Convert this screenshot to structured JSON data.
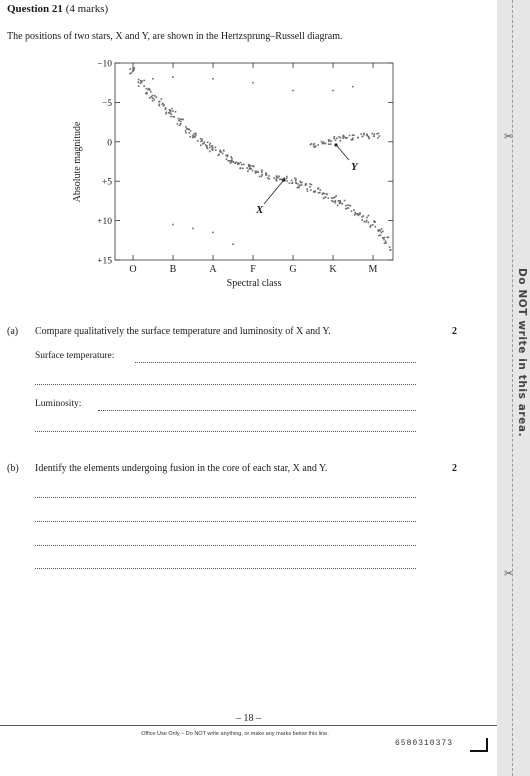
{
  "question": {
    "title": "Question 21",
    "marks_note": "(4 marks)",
    "intro": "The positions of two stars, X and Y, are shown in the Hertzsprung–Russell diagram."
  },
  "chart_data": {
    "type": "scatter",
    "xlabel": "Spectral class",
    "ylabel": "Absolute magnitude",
    "x_categories": [
      "O",
      "B",
      "A",
      "F",
      "G",
      "K",
      "M"
    ],
    "y_ticks": [
      "−10",
      "−5",
      "0",
      "+5",
      "+10",
      "+15"
    ],
    "ylim": [
      -10,
      15
    ],
    "y_inverted": true,
    "annotations": [
      {
        "label": "X",
        "x": 4.0,
        "y": 4.6
      },
      {
        "label": "Y",
        "x": 5.1,
        "y": 0.3
      }
    ],
    "series": [
      {
        "region": "main-sequence",
        "points": [
          [
            0.0,
            -9
          ],
          [
            0.2,
            -7.5
          ],
          [
            0.4,
            -6.5
          ],
          [
            0.5,
            -5.5
          ],
          [
            0.7,
            -5
          ],
          [
            0.9,
            -4
          ],
          [
            1.0,
            -3.5
          ],
          [
            1.2,
            -2.5
          ],
          [
            1.4,
            -1.5
          ],
          [
            1.5,
            -1
          ],
          [
            1.7,
            0
          ],
          [
            1.9,
            0.5
          ],
          [
            2.0,
            1
          ],
          [
            2.2,
            1.5
          ],
          [
            2.4,
            2
          ],
          [
            2.5,
            2.5
          ],
          [
            2.7,
            3
          ],
          [
            2.9,
            3.3
          ],
          [
            3.0,
            3.5
          ],
          [
            3.2,
            4
          ],
          [
            3.4,
            4.3
          ],
          [
            3.6,
            4.6
          ],
          [
            3.8,
            4.8
          ],
          [
            4.0,
            5
          ],
          [
            4.2,
            5.4
          ],
          [
            4.4,
            5.8
          ],
          [
            4.6,
            6.3
          ],
          [
            4.8,
            6.8
          ],
          [
            5.0,
            7.3
          ],
          [
            5.2,
            7.8
          ],
          [
            5.4,
            8.4
          ],
          [
            5.6,
            9.0
          ],
          [
            5.8,
            9.8
          ],
          [
            6.0,
            10.5
          ],
          [
            6.2,
            11.5
          ],
          [
            6.3,
            12.5
          ],
          [
            6.5,
            13.5
          ]
        ]
      },
      {
        "region": "giants",
        "points": [
          [
            4.5,
            0.5
          ],
          [
            4.7,
            0.2
          ],
          [
            4.9,
            0
          ],
          [
            5.1,
            -0.3
          ],
          [
            5.3,
            -0.5
          ],
          [
            5.5,
            -0.6
          ],
          [
            5.7,
            -0.8
          ],
          [
            5.9,
            -0.7
          ],
          [
            6.1,
            -0.8
          ]
        ]
      },
      {
        "region": "supergiants",
        "points": [
          [
            0.5,
            -8
          ],
          [
            1.0,
            -8.2
          ],
          [
            2.0,
            -8
          ],
          [
            3.0,
            -7.5
          ],
          [
            4.0,
            -6.5
          ],
          [
            5.0,
            -6.5
          ],
          [
            5.5,
            -7
          ]
        ]
      },
      {
        "region": "white-dwarfs",
        "points": [
          [
            1.0,
            10.5
          ],
          [
            1.5,
            11
          ],
          [
            2.0,
            11.5
          ],
          [
            2.5,
            13
          ]
        ]
      }
    ]
  },
  "parts": {
    "a": {
      "letter": "(a)",
      "text": "Compare qualitatively the surface temperature and luminosity of X and Y.",
      "marks": "2",
      "label1": "Surface temperature:",
      "label2": "Luminosity:"
    },
    "b": {
      "letter": "(b)",
      "text": "Identify the elements undergoing fusion in the core of each star, X and Y.",
      "marks": "2"
    }
  },
  "sidebar": {
    "text": "Do NOT write in this area.",
    "scissor": "✂"
  },
  "footer": {
    "page_number": "– 18 –",
    "office_note": "Office Use Only – Do NOT write anything, or make any marks below this line.",
    "barcode_number": "6580310373"
  }
}
